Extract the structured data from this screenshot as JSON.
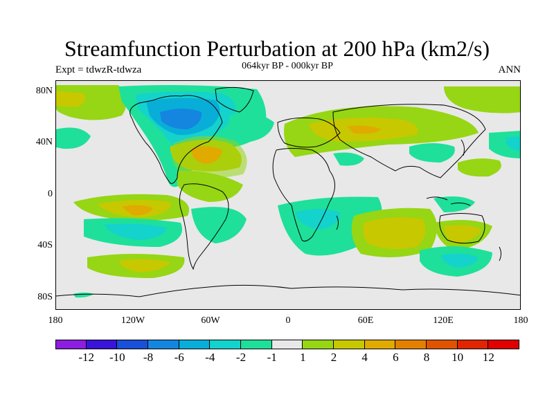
{
  "title": "Streamfunction Perturbation at 200 hPa (km2/s)",
  "subtitle": "064kyr BP - 000kyr BP",
  "left_label": "Expt = tdwzR-tdwza",
  "right_label": "ANN",
  "lat_ticks": [
    "80N",
    "40N",
    "0",
    "40S",
    "80S"
  ],
  "lon_ticks": [
    "180",
    "120W",
    "60W",
    "0",
    "60E",
    "120E",
    "180"
  ],
  "colorbar": {
    "colors": [
      "#8c1ee0",
      "#3a14d8",
      "#1a50d8",
      "#1486e0",
      "#08aed8",
      "#14d2cc",
      "#1ee09a",
      "#e8e8e8",
      "#96d614",
      "#c8c800",
      "#e0aa00",
      "#e48000",
      "#e05400",
      "#e02600",
      "#e00000"
    ],
    "labels": [
      "-12",
      "-10",
      "-8",
      "-6",
      "-4",
      "-2",
      "-1",
      "1",
      "2",
      "4",
      "6",
      "8",
      "10",
      "12"
    ]
  },
  "colors": {
    "background": "#e8e8e8",
    "neg1": "#1ee09a",
    "neg2": "#14d2cc",
    "neg4": "#08aed8",
    "neg6": "#1486e0",
    "pos1": "#96d614",
    "pos2": "#c8c800",
    "pos4": "#e0aa00"
  }
}
